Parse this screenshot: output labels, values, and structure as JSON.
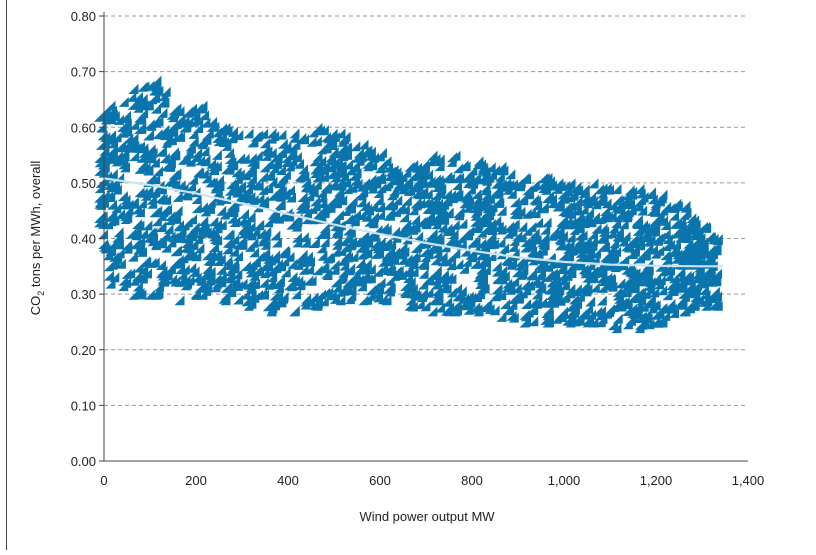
{
  "chart_data": {
    "type": "scatter",
    "title": "",
    "xlabel": "Wind power output MW",
    "ylabel": "CO₂ tons per MWh, overall",
    "ylabel_parts": {
      "pre": "CO",
      "sub": "2",
      "post": " tons per MWh, overall"
    },
    "xlim": [
      0,
      1400
    ],
    "ylim": [
      0,
      0.8
    ],
    "x_ticks": [
      0,
      200,
      400,
      600,
      800,
      1000,
      1200,
      1400
    ],
    "x_tick_labels": [
      "0",
      "200",
      "400",
      "600",
      "800",
      "1,000",
      "1,200",
      "1,400"
    ],
    "y_ticks": [
      0,
      0.1,
      0.2,
      0.3,
      0.4,
      0.5,
      0.6,
      0.7,
      0.8
    ],
    "y_tick_labels": [
      "0.00",
      "0.10",
      "0.20",
      "0.30",
      "0.40",
      "0.50",
      "0.60",
      "0.70",
      "0.80"
    ],
    "grid": "horizontal-dashed",
    "colors": {
      "points": "#0a75ad",
      "trend": "#c9e3f2",
      "grid": "#999999",
      "axis": "#444444"
    },
    "envelope": [
      {
        "x": 0,
        "low": 0.42,
        "high": 0.61
      },
      {
        "x": 25,
        "low": 0.31,
        "high": 0.63
      },
      {
        "x": 75,
        "low": 0.29,
        "high": 0.66
      },
      {
        "x": 125,
        "low": 0.29,
        "high": 0.67
      },
      {
        "x": 175,
        "low": 0.28,
        "high": 0.62
      },
      {
        "x": 225,
        "low": 0.29,
        "high": 0.63
      },
      {
        "x": 275,
        "low": 0.28,
        "high": 0.59
      },
      {
        "x": 325,
        "low": 0.27,
        "high": 0.58
      },
      {
        "x": 375,
        "low": 0.26,
        "high": 0.58
      },
      {
        "x": 425,
        "low": 0.26,
        "high": 0.58
      },
      {
        "x": 475,
        "low": 0.27,
        "high": 0.59
      },
      {
        "x": 525,
        "low": 0.28,
        "high": 0.58
      },
      {
        "x": 575,
        "low": 0.28,
        "high": 0.56
      },
      {
        "x": 625,
        "low": 0.28,
        "high": 0.53
      },
      {
        "x": 675,
        "low": 0.27,
        "high": 0.52
      },
      {
        "x": 725,
        "low": 0.26,
        "high": 0.54
      },
      {
        "x": 775,
        "low": 0.26,
        "high": 0.54
      },
      {
        "x": 825,
        "low": 0.26,
        "high": 0.53
      },
      {
        "x": 875,
        "low": 0.25,
        "high": 0.52
      },
      {
        "x": 925,
        "low": 0.24,
        "high": 0.5
      },
      {
        "x": 975,
        "low": 0.24,
        "high": 0.5
      },
      {
        "x": 1025,
        "low": 0.24,
        "high": 0.49
      },
      {
        "x": 1075,
        "low": 0.24,
        "high": 0.49
      },
      {
        "x": 1125,
        "low": 0.23,
        "high": 0.48
      },
      {
        "x": 1175,
        "low": 0.23,
        "high": 0.48
      },
      {
        "x": 1225,
        "low": 0.24,
        "high": 0.47
      },
      {
        "x": 1275,
        "low": 0.26,
        "high": 0.45
      },
      {
        "x": 1320,
        "low": 0.27,
        "high": 0.41
      },
      {
        "x": 1345,
        "low": 0.27,
        "high": 0.39
      }
    ],
    "outliers": [
      {
        "x": 125,
        "y": 0.675
      },
      {
        "x": 75,
        "y": 0.66
      },
      {
        "x": 145,
        "y": 0.655
      },
      {
        "x": 215,
        "y": 0.625
      },
      {
        "x": 615,
        "y": 0.545
      },
      {
        "x": 1185,
        "y": 0.238
      },
      {
        "x": 1295,
        "y": 0.27
      },
      {
        "x": 1335,
        "y": 0.39
      },
      {
        "x": 975,
        "y": 0.245
      },
      {
        "x": 375,
        "y": 0.262
      }
    ],
    "trend_line": [
      {
        "x": 0,
        "y": 0.508
      },
      {
        "x": 100,
        "y": 0.496
      },
      {
        "x": 200,
        "y": 0.481
      },
      {
        "x": 300,
        "y": 0.463
      },
      {
        "x": 400,
        "y": 0.444
      },
      {
        "x": 500,
        "y": 0.425
      },
      {
        "x": 600,
        "y": 0.408
      },
      {
        "x": 700,
        "y": 0.392
      },
      {
        "x": 800,
        "y": 0.378
      },
      {
        "x": 900,
        "y": 0.366
      },
      {
        "x": 1000,
        "y": 0.358
      },
      {
        "x": 1100,
        "y": 0.353
      },
      {
        "x": 1200,
        "y": 0.351
      },
      {
        "x": 1300,
        "y": 0.35
      },
      {
        "x": 1345,
        "y": 0.35
      }
    ]
  }
}
